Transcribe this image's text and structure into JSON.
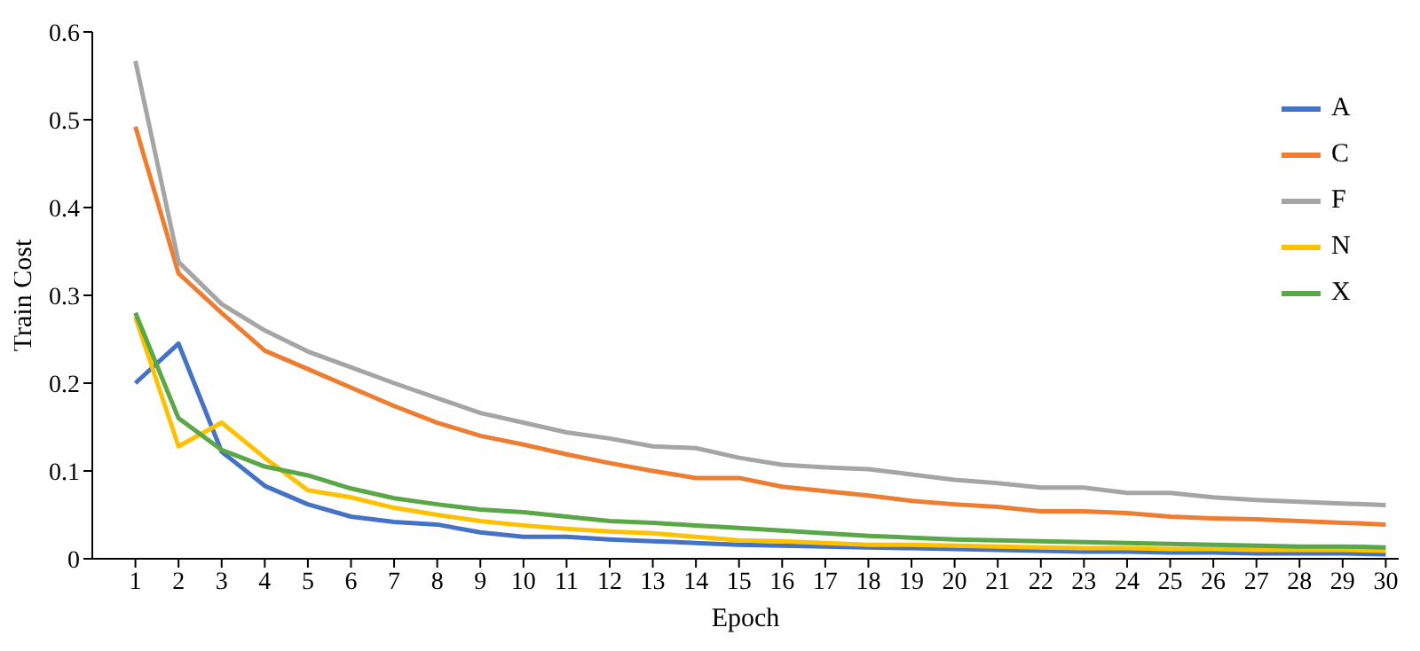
{
  "chart_data": {
    "type": "line",
    "xlabel": "Epoch",
    "ylabel": "Train Cost",
    "x": [
      1,
      2,
      3,
      4,
      5,
      6,
      7,
      8,
      9,
      10,
      11,
      12,
      13,
      14,
      15,
      16,
      17,
      18,
      19,
      20,
      21,
      22,
      23,
      24,
      25,
      26,
      27,
      28,
      29,
      30
    ],
    "xlim": [
      0,
      30.3
    ],
    "xticks": [
      1,
      2,
      3,
      4,
      5,
      6,
      7,
      8,
      9,
      10,
      11,
      12,
      13,
      14,
      15,
      16,
      17,
      18,
      19,
      20,
      21,
      22,
      23,
      24,
      25,
      26,
      27,
      28,
      29,
      30
    ],
    "ylim": [
      0,
      0.6
    ],
    "yticks": [
      {
        "value": 0,
        "label": "0"
      },
      {
        "value": 0.1,
        "label": "0.1"
      },
      {
        "value": 0.2,
        "label": "0.2"
      },
      {
        "value": 0.3,
        "label": "0.3"
      },
      {
        "value": 0.4,
        "label": "0.4"
      },
      {
        "value": 0.5,
        "label": "0.5"
      },
      {
        "value": 0.6,
        "label": "0.6"
      }
    ],
    "grid": false,
    "legend": "top right",
    "marker": "none",
    "line_style": "solid",
    "series": [
      {
        "name": "A",
        "color": "#4472c4",
        "values": [
          0.2,
          0.245,
          0.122,
          0.083,
          0.062,
          0.048,
          0.042,
          0.039,
          0.03,
          0.025,
          0.025,
          0.022,
          0.02,
          0.018,
          0.016,
          0.015,
          0.014,
          0.013,
          0.012,
          0.011,
          0.01,
          0.009,
          0.008,
          0.008,
          0.007,
          0.007,
          0.006,
          0.006,
          0.006,
          0.005
        ]
      },
      {
        "name": "C",
        "color": "#ed7d31",
        "values": [
          0.492,
          0.325,
          0.28,
          0.237,
          0.216,
          0.195,
          0.174,
          0.155,
          0.14,
          0.13,
          0.119,
          0.109,
          0.1,
          0.092,
          0.092,
          0.082,
          0.077,
          0.072,
          0.066,
          0.062,
          0.059,
          0.054,
          0.054,
          0.052,
          0.048,
          0.046,
          0.045,
          0.043,
          0.041,
          0.039
        ]
      },
      {
        "name": "F",
        "color": "#a5a5a5",
        "values": [
          0.567,
          0.338,
          0.29,
          0.26,
          0.236,
          0.218,
          0.2,
          0.183,
          0.166,
          0.155,
          0.144,
          0.137,
          0.128,
          0.126,
          0.115,
          0.107,
          0.104,
          0.102,
          0.096,
          0.09,
          0.086,
          0.081,
          0.081,
          0.075,
          0.075,
          0.07,
          0.067,
          0.065,
          0.063,
          0.061
        ]
      },
      {
        "name": "N",
        "color": "#ffc000",
        "values": [
          0.275,
          0.128,
          0.155,
          0.115,
          0.078,
          0.07,
          0.058,
          0.05,
          0.043,
          0.038,
          0.034,
          0.031,
          0.029,
          0.025,
          0.021,
          0.02,
          0.018,
          0.016,
          0.016,
          0.015,
          0.014,
          0.013,
          0.012,
          0.012,
          0.011,
          0.011,
          0.01,
          0.01,
          0.01,
          0.009
        ]
      },
      {
        "name": "X",
        "color": "#5aa747",
        "values": [
          0.28,
          0.16,
          0.124,
          0.105,
          0.095,
          0.08,
          0.069,
          0.062,
          0.056,
          0.053,
          0.048,
          0.043,
          0.041,
          0.038,
          0.035,
          0.032,
          0.029,
          0.026,
          0.024,
          0.022,
          0.021,
          0.02,
          0.019,
          0.018,
          0.017,
          0.016,
          0.015,
          0.014,
          0.014,
          0.013
        ]
      }
    ]
  }
}
